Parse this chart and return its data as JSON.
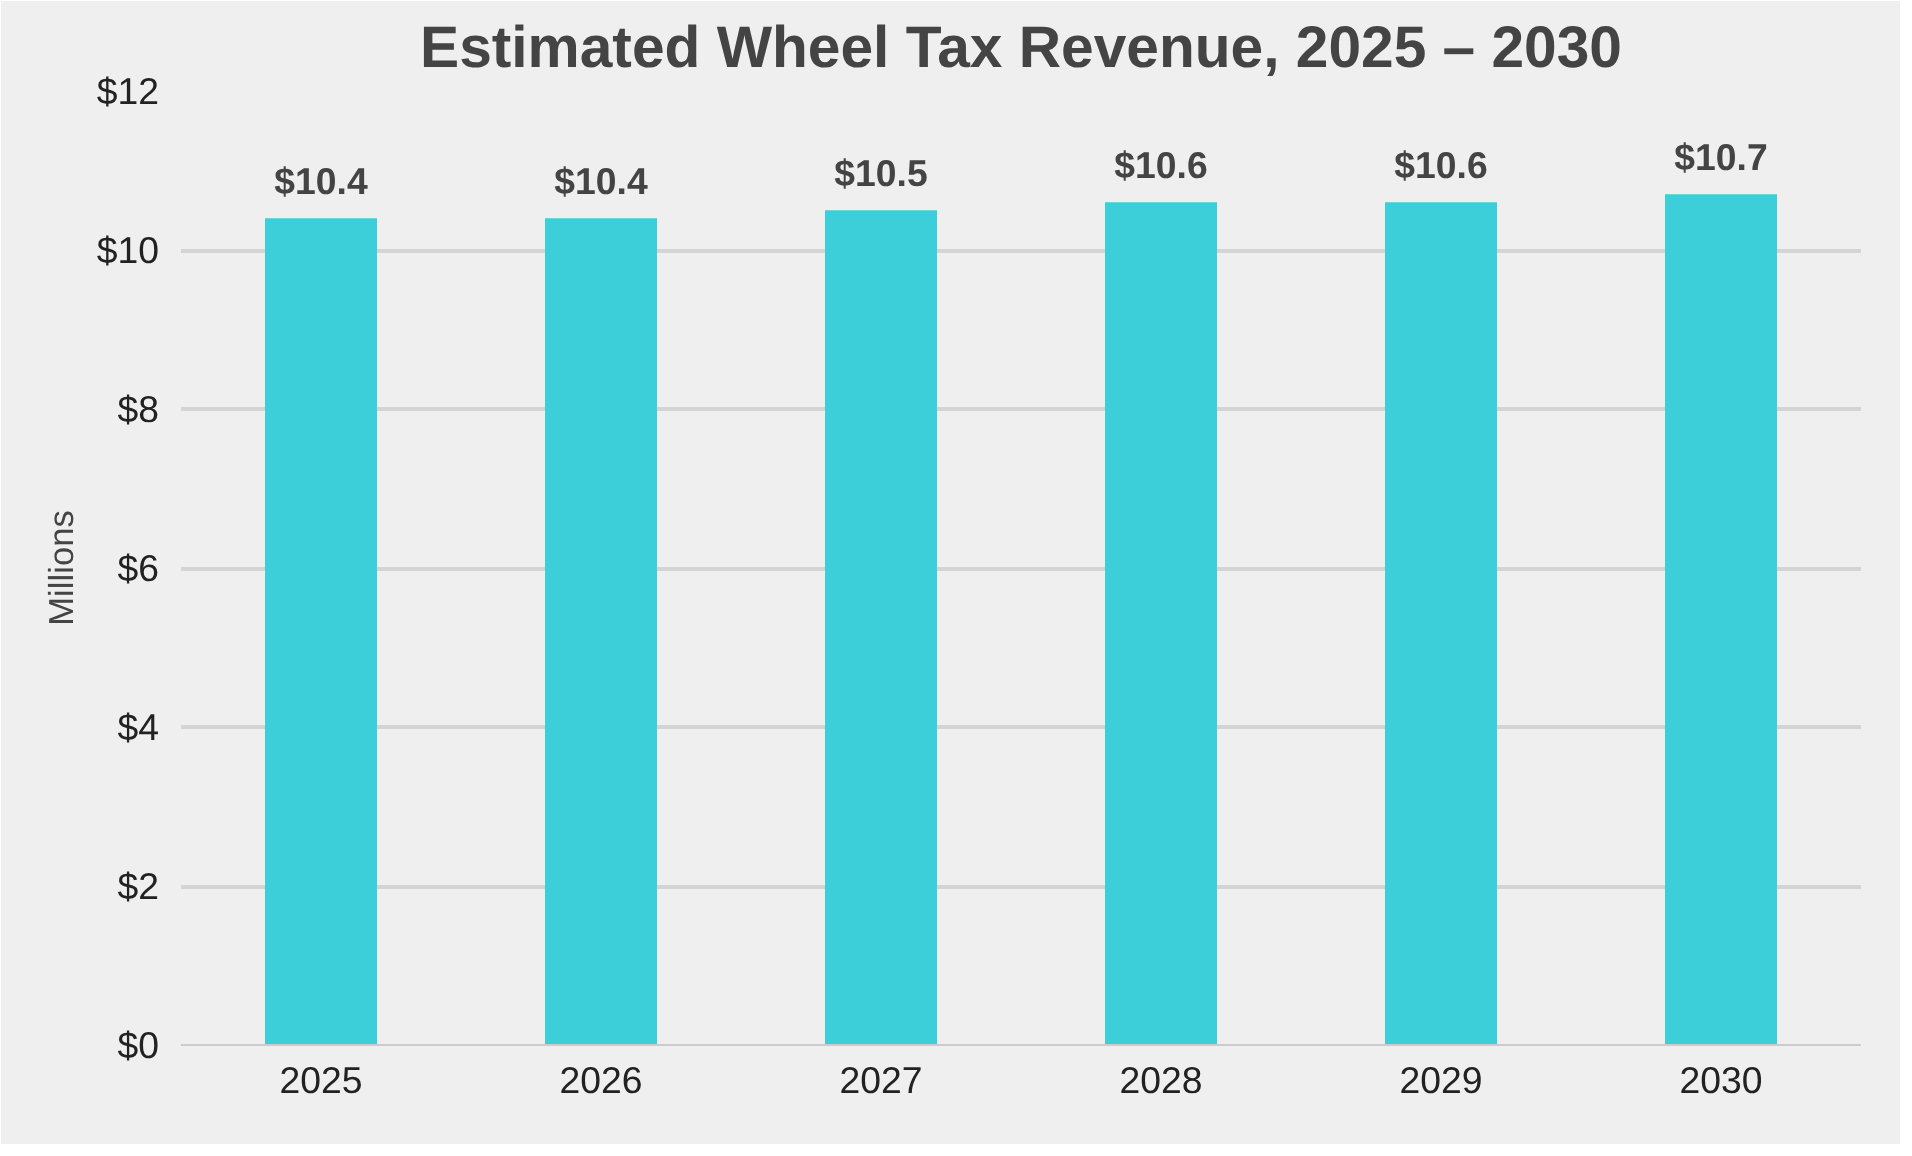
{
  "chart_data": {
    "type": "bar",
    "title": "Estimated Wheel Tax Revenue, 2025 – 2030",
    "ylabel": "Millions",
    "categories": [
      "2025",
      "2026",
      "2027",
      "2028",
      "2029",
      "2030"
    ],
    "values": [
      10.4,
      10.4,
      10.5,
      10.6,
      10.6,
      10.7
    ],
    "value_labels": [
      "$10.4",
      "$10.4",
      "$10.5",
      "$10.6",
      "$10.6",
      "$10.7"
    ],
    "color": "#3ccfd9",
    "ylim": [
      0,
      12
    ],
    "yticks": [
      {
        "value": 0,
        "label": "$0"
      },
      {
        "value": 2,
        "label": "$2"
      },
      {
        "value": 4,
        "label": "$4"
      },
      {
        "value": 6,
        "label": "$6"
      },
      {
        "value": 8,
        "label": "$8"
      },
      {
        "value": 10,
        "label": "$10"
      },
      {
        "value": 12,
        "label": "$12"
      }
    ],
    "grid": "y"
  }
}
